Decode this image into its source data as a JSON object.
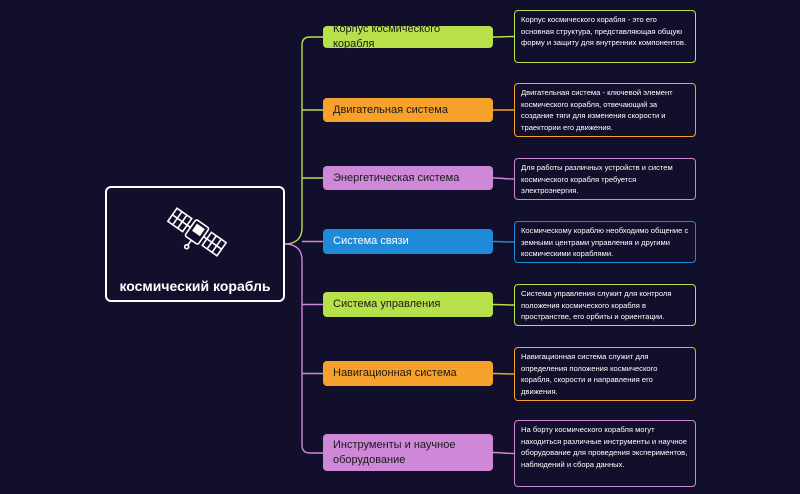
{
  "root": {
    "title": "космический корабль",
    "icon": "satellite-icon"
  },
  "colors": {
    "background": "#120f2c",
    "green": "#b8e04a",
    "orange": "#f5a12c",
    "purple": "#cf87d8",
    "blue": "#1f8ad8"
  },
  "branches": [
    {
      "label": "Корпус космического корабля",
      "color": "#b8e04a",
      "text_color": "#1a1a1a",
      "description": "Корпус космического корабля - это его основная структура, представляющая общую форму и защиту для внутренних компонентов."
    },
    {
      "label": "Двигательная система",
      "color": "#f5a12c",
      "text_color": "#1a1a1a",
      "description": "Двигательная система - ключевой элемент космического корабля, отвечающий за создание тяги для изменения скорости и траектории его движения."
    },
    {
      "label": "Энергетическая система",
      "color": "#cf87d8",
      "text_color": "#1a1a1a",
      "description": "Для работы различных устройств и систем космического корабля требуется электроэнергия."
    },
    {
      "label": "Система связи",
      "color": "#1f8ad8",
      "text_color": "#ffffff",
      "description": "Космическому кораблю необходимо общение с земными центрами управления и другими космическими кораблями."
    },
    {
      "label": "Система управления",
      "color": "#b8e04a",
      "text_color": "#1a1a1a",
      "description": "Система управления служит для контроля положения космического корабля в пространстве, его орбиты и ориентации."
    },
    {
      "label": "Навигационная система",
      "color": "#f5a12c",
      "text_color": "#1a1a1a",
      "description": "Навигационная система служит для определения положения космического корабля, скорости и направления его движения."
    },
    {
      "label": "Инструменты и научное оборудование",
      "color": "#cf87d8",
      "text_color": "#1a1a1a",
      "description": "На борту космического корабля могут находиться различные инструменты и научное оборудование для проведения экспериментов, наблюдений и сбора данных."
    }
  ]
}
